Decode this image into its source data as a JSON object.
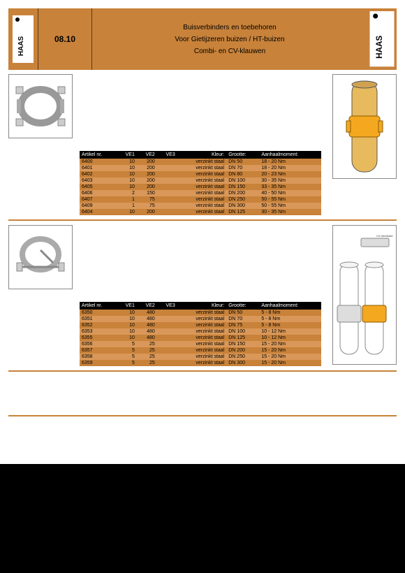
{
  "header": {
    "code": "08.10",
    "line1": "Buisverbinders en toebehoren",
    "line2": "Voor Gietijzeren buizen / HT-buizen",
    "line3": "Combi- en CV-klauwen"
  },
  "table_headers": {
    "artikel": "Artikel nr.",
    "ve1": "VE1",
    "ve2": "VE2",
    "ve3": "VE3",
    "kleur": "Kleur:",
    "grootte": "Grootte:",
    "aanhaal": "Aanhaalmoment:"
  },
  "table1": {
    "rows": [
      {
        "art": "6400",
        "ve1": "10",
        "ve2": "200",
        "ve3": "",
        "kleur": "verzinkt staal",
        "groot": "DN 50",
        "aan": "18 - 20 Nm",
        "cls": "e"
      },
      {
        "art": "6401",
        "ve1": "10",
        "ve2": "200",
        "ve3": "",
        "kleur": "verzinkt staal",
        "groot": "DN 70",
        "aan": "18 - 20 Nm",
        "cls": "o"
      },
      {
        "art": "6402",
        "ve1": "10",
        "ve2": "200",
        "ve3": "",
        "kleur": "verzinkt staal",
        "groot": "DN 80",
        "aan": "20 - 23 Nm",
        "cls": "e"
      },
      {
        "art": "6403",
        "ve1": "10",
        "ve2": "200",
        "ve3": "",
        "kleur": "verzinkt staal",
        "groot": "DN 100",
        "aan": "30 - 35 Nm",
        "cls": "o"
      },
      {
        "art": "6405",
        "ve1": "10",
        "ve2": "200",
        "ve3": "",
        "kleur": "verzinkt staal",
        "groot": "DN 150",
        "aan": "33 - 35 Nm",
        "cls": "e"
      },
      {
        "art": "6406",
        "ve1": "2",
        "ve2": "150",
        "ve3": "",
        "kleur": "verzinkt staal",
        "groot": "DN 200",
        "aan": "40 - 50 Nm",
        "cls": "o"
      },
      {
        "art": "6407",
        "ve1": "1",
        "ve2": "75",
        "ve3": "",
        "kleur": "verzinkt staal",
        "groot": "DN 250",
        "aan": "50 - 55 Nm",
        "cls": "e"
      },
      {
        "art": "6409",
        "ve1": "1",
        "ve2": "75",
        "ve3": "",
        "kleur": "verzinkt staal",
        "groot": "DN 300",
        "aan": "50 - 55 Nm",
        "cls": "o"
      },
      {
        "art": "6404",
        "ve1": "10",
        "ve2": "200",
        "ve3": "",
        "kleur": "verzinkt staal",
        "groot": "DN 125",
        "aan": "30 - 35 Nm",
        "cls": "e"
      }
    ]
  },
  "table2": {
    "rows": [
      {
        "art": "6350",
        "ve1": "10",
        "ve2": "480",
        "ve3": "",
        "kleur": "verzinkt staal",
        "groot": "DN 50",
        "aan": "5 - 8 Nm",
        "cls": "e"
      },
      {
        "art": "6351",
        "ve1": "10",
        "ve2": "480",
        "ve3": "",
        "kleur": "verzinkt staal",
        "groot": "DN 70",
        "aan": "5 - 8 Nm",
        "cls": "o"
      },
      {
        "art": "6352",
        "ve1": "10",
        "ve2": "480",
        "ve3": "",
        "kleur": "verzinkt staal",
        "groot": "DN 75",
        "aan": "5 - 8 Nm",
        "cls": "e"
      },
      {
        "art": "6353",
        "ve1": "10",
        "ve2": "480",
        "ve3": "",
        "kleur": "verzinkt staal",
        "groot": "DN 100",
        "aan": "10 - 12 Nm",
        "cls": "o"
      },
      {
        "art": "6355",
        "ve1": "10",
        "ve2": "480",
        "ve3": "",
        "kleur": "verzinkt staal",
        "groot": "DN 125",
        "aan": "10 - 12 Nm",
        "cls": "e"
      },
      {
        "art": "6356",
        "ve1": "5",
        "ve2": "25",
        "ve3": "",
        "kleur": "verzinkt staal",
        "groot": "DN 150",
        "aan": "15 - 20 Nm",
        "cls": "o"
      },
      {
        "art": "6357",
        "ve1": "5",
        "ve2": "25",
        "ve3": "",
        "kleur": "verzinkt staal",
        "groot": "DN 200",
        "aan": "15 - 20 Nm",
        "cls": "e"
      },
      {
        "art": "6358",
        "ve1": "5",
        "ve2": "25",
        "ve3": "",
        "kleur": "verzinkt staal",
        "groot": "DN 250",
        "aan": "15 - 20 Nm",
        "cls": "o"
      },
      {
        "art": "6359",
        "ve1": "5",
        "ve2": "25",
        "ve3": "",
        "kleur": "verzinkt staal",
        "groot": "DN 300",
        "aan": "15 - 20 Nm",
        "cls": "e"
      }
    ]
  },
  "illus2_label": "CV-Verbinder",
  "colors": {
    "brand": "#c8823a",
    "row_even": "#c8823a",
    "row_odd": "#d99859",
    "th_bg": "#000000",
    "pipe": "#e8ba5e",
    "clamp": "#f4a820"
  }
}
